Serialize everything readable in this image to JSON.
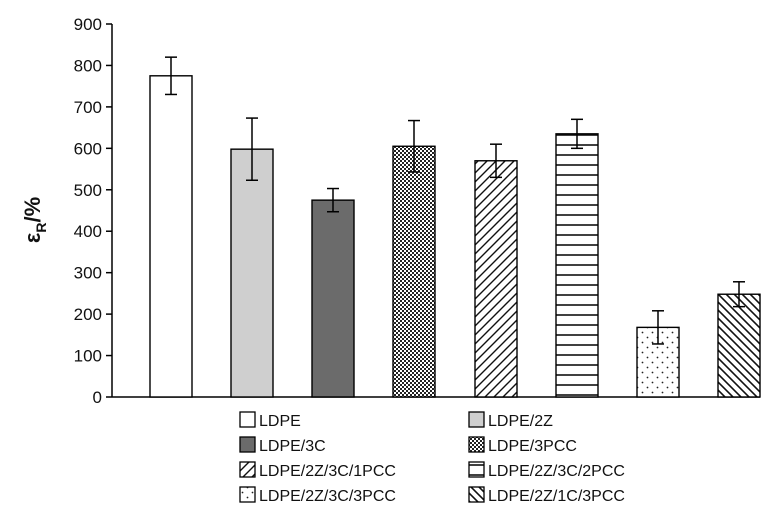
{
  "chart_data": {
    "type": "bar",
    "ylabel_main": "ε",
    "ylabel_sub": "R",
    "ylabel_unit": "/%",
    "ylim": [
      0,
      900
    ],
    "yticks": [
      "0",
      "100",
      "200",
      "300",
      "400",
      "500",
      "600",
      "700",
      "800",
      "900"
    ],
    "grid": false,
    "legend_position": "bottom",
    "bars": [
      {
        "name": "LDPE",
        "value": 775,
        "error": 45,
        "pattern": "white"
      },
      {
        "name": "LDPE/2Z",
        "value": 598,
        "error": 75,
        "pattern": "light-gray"
      },
      {
        "name": "LDPE/3C",
        "value": 475,
        "error": 28,
        "pattern": "dark-gray"
      },
      {
        "name": "LDPE/3PCC",
        "value": 605,
        "error": 62,
        "pattern": "checker"
      },
      {
        "name": "LDPE/2Z/3C/1PCC",
        "value": 570,
        "error": 40,
        "pattern": "diagonal-up"
      },
      {
        "name": "LDPE/2Z/3C/2PCC",
        "value": 635,
        "error": 35,
        "pattern": "horizontal"
      },
      {
        "name": "LDPE/2Z/3C/3PCC",
        "value": 168,
        "error": 40,
        "pattern": "dots"
      },
      {
        "name": "LDPE/2Z/1C/3PCC",
        "value": 248,
        "error": 30,
        "pattern": "diagonal-down"
      }
    ],
    "bar_gaps_after": [
      3,
      5
    ]
  },
  "colors": {
    "light_gray": "#cfcfcf",
    "dark_gray": "#6b6b6b",
    "stroke": "#000000"
  }
}
